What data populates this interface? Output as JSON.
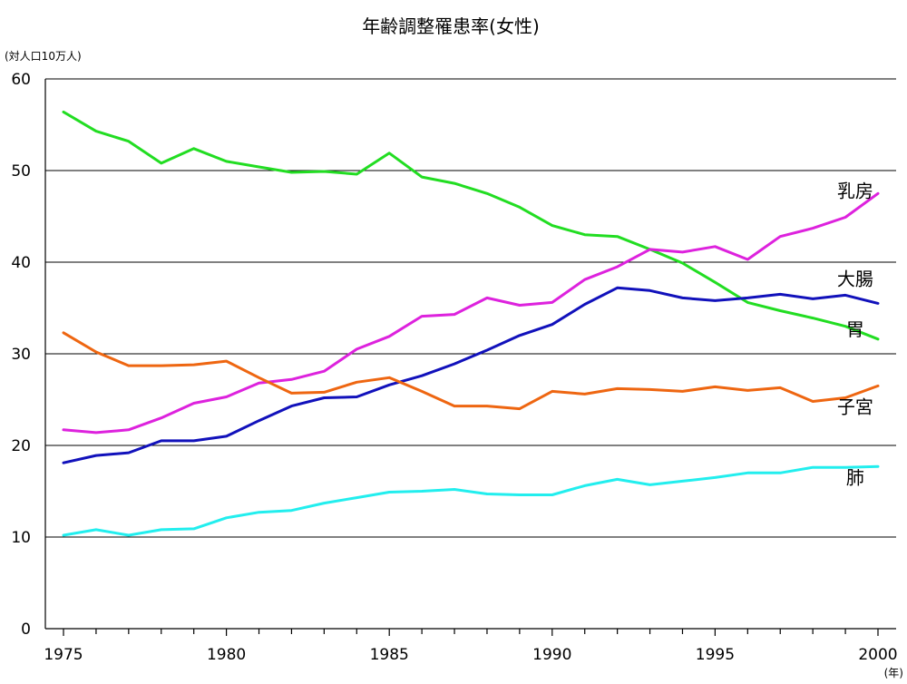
{
  "chart_data": {
    "type": "line",
    "title": "年齢調整罹患率(女性)",
    "ylabel": "(対人口10万人)",
    "xlabel": "(年)",
    "ylim": [
      0,
      60
    ],
    "xlim": [
      1975,
      2000
    ],
    "yticks": [
      0,
      10,
      20,
      30,
      40,
      50,
      60
    ],
    "xtick_labels": [
      "1975",
      "1980",
      "1985",
      "1990",
      "1995",
      "2000"
    ],
    "x": [
      1975,
      1976,
      1977,
      1978,
      1979,
      1980,
      1981,
      1982,
      1983,
      1984,
      1985,
      1986,
      1987,
      1988,
      1989,
      1990,
      1991,
      1992,
      1993,
      1994,
      1995,
      1996,
      1997,
      1998,
      1999,
      2000
    ],
    "grid": "horizontal",
    "series": [
      {
        "name": "胃",
        "color": "#22dd22",
        "values": [
          56.4,
          54.3,
          53.2,
          50.8,
          52.4,
          51.0,
          50.4,
          49.8,
          49.9,
          49.6,
          51.9,
          49.3,
          48.6,
          47.5,
          46.0,
          44.0,
          43.0,
          42.8,
          41.4,
          39.9,
          37.8,
          35.6,
          34.7,
          33.9,
          33.0,
          31.6
        ],
        "label_year": 1999.3,
        "label_value": 32.0
      },
      {
        "name": "乳房",
        "color": "#dd22dd",
        "values": [
          21.7,
          21.4,
          21.7,
          23.0,
          24.6,
          25.3,
          26.8,
          27.2,
          28.1,
          30.5,
          31.9,
          34.1,
          34.3,
          36.1,
          35.3,
          35.6,
          38.1,
          39.5,
          41.4,
          41.1,
          41.7,
          40.3,
          42.8,
          43.7,
          44.9,
          47.5
        ],
        "label_year": 1999.3,
        "label_value": 47.1
      },
      {
        "name": "大腸",
        "color": "#1111bb",
        "values": [
          18.1,
          18.9,
          19.2,
          20.5,
          20.5,
          21.0,
          22.7,
          24.3,
          25.2,
          25.3,
          26.6,
          27.6,
          28.9,
          30.4,
          32.0,
          33.2,
          35.4,
          37.2,
          36.9,
          36.1,
          35.8,
          36.1,
          36.5,
          36.0,
          36.4,
          35.5
        ],
        "label_year": 1999.3,
        "label_value": 37.5
      },
      {
        "name": "子宮",
        "color": "#ee6611",
        "values": [
          32.3,
          30.2,
          28.7,
          28.7,
          28.8,
          29.2,
          27.4,
          25.7,
          25.8,
          26.9,
          27.4,
          25.9,
          24.3,
          24.3,
          24.0,
          25.9,
          25.6,
          26.2,
          26.1,
          25.9,
          26.4,
          26.0,
          26.3,
          24.8,
          25.2,
          26.5
        ],
        "label_year": 1999.3,
        "label_value": 23.5
      },
      {
        "name": "肺",
        "color": "#22eeee",
        "values": [
          10.2,
          10.8,
          10.2,
          10.8,
          10.9,
          12.1,
          12.7,
          12.9,
          13.7,
          14.3,
          14.9,
          15.0,
          15.2,
          14.7,
          14.6,
          14.6,
          15.6,
          16.3,
          15.7,
          16.1,
          16.5,
          17.0,
          17.0,
          17.6,
          17.6,
          17.7
        ],
        "label_year": 1999.3,
        "label_value": 15.8
      }
    ]
  }
}
